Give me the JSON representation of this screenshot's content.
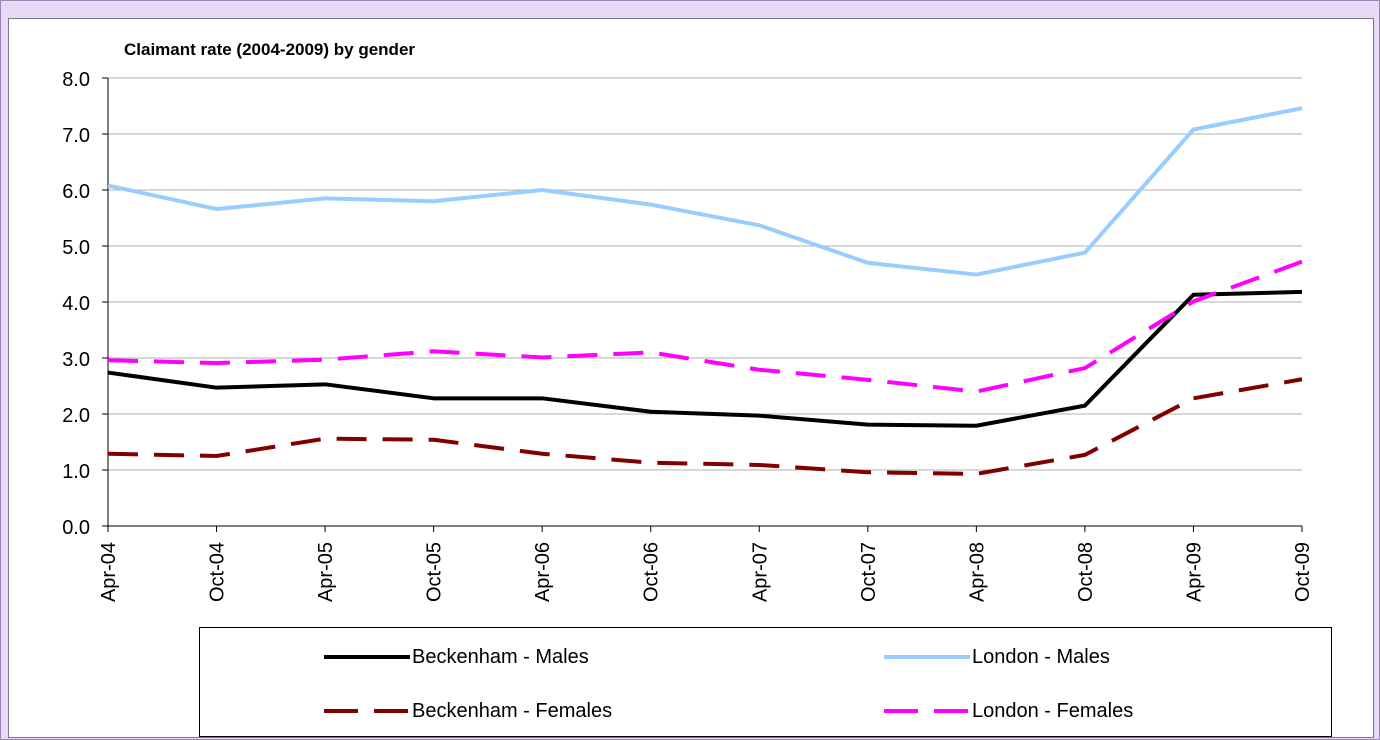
{
  "chart_data": {
    "type": "line",
    "title": "Claimant rate (2004-2009) by gender",
    "xlabel": "",
    "ylabel": "",
    "categories": [
      "Apr-04",
      "Oct-04",
      "Apr-05",
      "Oct-05",
      "Apr-06",
      "Oct-06",
      "Apr-07",
      "Oct-07",
      "Apr-08",
      "Oct-08",
      "Apr-09",
      "Oct-09"
    ],
    "ylim": [
      0,
      8
    ],
    "yticks": [
      "0.0",
      "1.0",
      "2.0",
      "3.0",
      "4.0",
      "5.0",
      "6.0",
      "7.0",
      "8.0"
    ],
    "grid": true,
    "legend_placement": "bottom",
    "series": [
      {
        "name": "Beckenham - Males",
        "color": "#000000",
        "dash": "solid",
        "values": [
          2.74,
          2.47,
          2.53,
          2.28,
          2.28,
          2.04,
          1.97,
          1.81,
          1.79,
          2.15,
          4.13,
          4.18
        ]
      },
      {
        "name": "London - Males",
        "color": "#99ccff",
        "dash": "solid",
        "values": [
          6.08,
          5.66,
          5.85,
          5.8,
          6.0,
          5.74,
          5.37,
          4.7,
          4.49,
          4.88,
          7.08,
          7.46
        ]
      },
      {
        "name": "Beckenham - Females",
        "color": "#800000",
        "dash": "dashed",
        "values": [
          1.29,
          1.25,
          1.56,
          1.54,
          1.29,
          1.13,
          1.09,
          0.96,
          0.93,
          1.27,
          2.28,
          2.62
        ]
      },
      {
        "name": "London - Females",
        "color": "#ff00ff",
        "dash": "dashed",
        "values": [
          2.96,
          2.91,
          2.97,
          3.12,
          3.01,
          3.1,
          2.79,
          2.61,
          2.4,
          2.82,
          4.01,
          4.72
        ]
      }
    ]
  }
}
